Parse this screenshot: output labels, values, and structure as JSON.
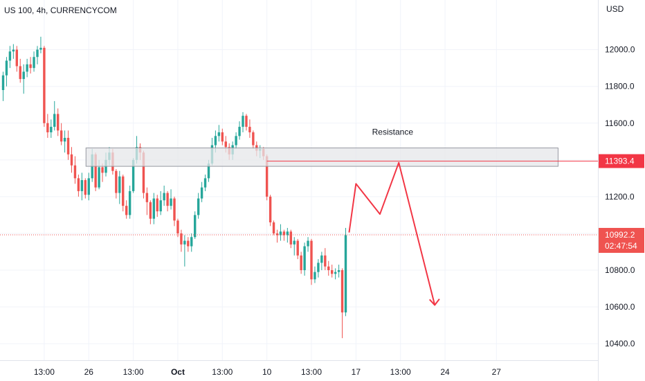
{
  "header": {
    "title": "US 100, 4h, CURRENCYCOM"
  },
  "colors": {
    "up": "#26a69a",
    "down": "#ef5350",
    "projection": "#f23645",
    "grid": "#f0f3fa",
    "zone_fill": "#e6e7ea",
    "zone_border": "#9598a1"
  },
  "chart_data": {
    "type": "candlestick",
    "title": "US 100, 4h, CURRENCYCOM",
    "ylabel": "USD",
    "ylim": [
      10310,
      12270
    ],
    "grid": true,
    "x_ticks": [
      {
        "label": "13:00",
        "bar": 12
      },
      {
        "label": "26",
        "bar": 25
      },
      {
        "label": "13:00",
        "bar": 38
      },
      {
        "label": "Oct",
        "bar": 51,
        "bold": true
      },
      {
        "label": "13:00",
        "bar": 64
      },
      {
        "label": "10",
        "bar": 77
      },
      {
        "label": "13:00",
        "bar": 90
      },
      {
        "label": "17",
        "bar": 103
      },
      {
        "label": "13:00",
        "bar": 116
      },
      {
        "label": "24",
        "bar": 129
      },
      {
        "label": "27",
        "bar": 144
      }
    ],
    "y_ticks": [
      "12000.0",
      "11800.0",
      "11600.0",
      "11400.0",
      "11200.0",
      "11000.0",
      "10800.0",
      "10600.0",
      "10400.0"
    ],
    "candles": [
      [
        11780,
        11880,
        11720,
        11860
      ],
      [
        11860,
        11960,
        11800,
        11940
      ],
      [
        11940,
        12020,
        11900,
        11990
      ],
      [
        11990,
        12030,
        11950,
        12000
      ],
      [
        12000,
        12020,
        11880,
        11910
      ],
      [
        11910,
        11950,
        11820,
        11840
      ],
      [
        11840,
        11920,
        11760,
        11880
      ],
      [
        11880,
        11950,
        11850,
        11920
      ],
      [
        11920,
        11960,
        11870,
        11900
      ],
      [
        11900,
        11990,
        11880,
        11960
      ],
      [
        11960,
        12020,
        11920,
        12000
      ],
      [
        12000,
        12070,
        11980,
        12010
      ],
      [
        12010,
        12020,
        11580,
        11600
      ],
      [
        11600,
        11650,
        11520,
        11550
      ],
      [
        11550,
        11620,
        11520,
        11580
      ],
      [
        11580,
        11720,
        11560,
        11650
      ],
      [
        11650,
        11680,
        11530,
        11560
      ],
      [
        11560,
        11600,
        11480,
        11500
      ],
      [
        11500,
        11560,
        11440,
        11520
      ],
      [
        11520,
        11560,
        11400,
        11430
      ],
      [
        11430,
        11470,
        11330,
        11370
      ],
      [
        11370,
        11420,
        11270,
        11300
      ],
      [
        11300,
        11320,
        11200,
        11230
      ],
      [
        11230,
        11330,
        11180,
        11290
      ],
      [
        11290,
        11300,
        11190,
        11210
      ],
      [
        11210,
        11330,
        11180,
        11300
      ],
      [
        11300,
        11460,
        11280,
        11430
      ],
      [
        11430,
        11440,
        11230,
        11250
      ],
      [
        11250,
        11400,
        11240,
        11360
      ],
      [
        11360,
        11380,
        11280,
        11330
      ],
      [
        11330,
        11440,
        11310,
        11400
      ],
      [
        11400,
        11470,
        11370,
        11440
      ],
      [
        11440,
        11460,
        11320,
        11340
      ],
      [
        11340,
        11350,
        11190,
        11220
      ],
      [
        11220,
        11340,
        11160,
        11310
      ],
      [
        11310,
        11320,
        11120,
        11150
      ],
      [
        11150,
        11180,
        11080,
        11100
      ],
      [
        11100,
        11260,
        11080,
        11230
      ],
      [
        11230,
        11410,
        11220,
        11400
      ],
      [
        11400,
        11530,
        11380,
        11470
      ],
      [
        11470,
        11490,
        11400,
        11440
      ],
      [
        11440,
        11450,
        11190,
        11220
      ],
      [
        11220,
        11250,
        11100,
        11170
      ],
      [
        11170,
        11180,
        11050,
        11080
      ],
      [
        11080,
        11220,
        11050,
        11190
      ],
      [
        11190,
        11210,
        11090,
        11120
      ],
      [
        11120,
        11230,
        11100,
        11180
      ],
      [
        11180,
        11260,
        11150,
        11220
      ],
      [
        11220,
        11230,
        11120,
        11150
      ],
      [
        11150,
        11240,
        11130,
        11190
      ],
      [
        11190,
        11200,
        11040,
        11070
      ],
      [
        11070,
        11080,
        10980,
        11000
      ],
      [
        11000,
        11020,
        10900,
        10940
      ],
      [
        10940,
        10990,
        10820,
        10960
      ],
      [
        10960,
        10980,
        10900,
        10930
      ],
      [
        10930,
        11000,
        10900,
        10980
      ],
      [
        10980,
        11120,
        10970,
        11100
      ],
      [
        11100,
        11220,
        11080,
        11190
      ],
      [
        11190,
        11280,
        11170,
        11250
      ],
      [
        11250,
        11320,
        11230,
        11300
      ],
      [
        11300,
        11400,
        11280,
        11380
      ],
      [
        11380,
        11520,
        11370,
        11480
      ],
      [
        11480,
        11560,
        11440,
        11530
      ],
      [
        11530,
        11590,
        11500,
        11550
      ],
      [
        11550,
        11570,
        11480,
        11500
      ],
      [
        11500,
        11530,
        11440,
        11470
      ],
      [
        11470,
        11490,
        11400,
        11430
      ],
      [
        11430,
        11500,
        11400,
        11480
      ],
      [
        11480,
        11550,
        11460,
        11530
      ],
      [
        11530,
        11610,
        11510,
        11580
      ],
      [
        11580,
        11660,
        11550,
        11640
      ],
      [
        11640,
        11650,
        11560,
        11580
      ],
      [
        11580,
        11620,
        11520,
        11550
      ],
      [
        11550,
        11560,
        11460,
        11480
      ],
      [
        11480,
        11500,
        11420,
        11450
      ],
      [
        11450,
        11480,
        11410,
        11460
      ],
      [
        11460,
        11470,
        11400,
        11420
      ],
      [
        11420,
        11430,
        11180,
        11200
      ],
      [
        11200,
        11210,
        11040,
        11060
      ],
      [
        11060,
        11070,
        10990,
        11000
      ],
      [
        11000,
        11020,
        10950,
        10990
      ],
      [
        10990,
        11050,
        10960,
        11010
      ],
      [
        11010,
        11020,
        10960,
        10990
      ],
      [
        10990,
        11030,
        10950,
        11010
      ],
      [
        11010,
        11020,
        10920,
        10940
      ],
      [
        10940,
        10980,
        10880,
        10960
      ],
      [
        10960,
        10970,
        10860,
        10880
      ],
      [
        10880,
        10900,
        10780,
        10800
      ],
      [
        10800,
        10950,
        10770,
        10930
      ],
      [
        10930,
        10980,
        10900,
        10960
      ],
      [
        10960,
        10970,
        10720,
        10750
      ],
      [
        10750,
        10820,
        10730,
        10790
      ],
      [
        10790,
        10860,
        10760,
        10840
      ],
      [
        10840,
        10900,
        10800,
        10880
      ],
      [
        10880,
        10920,
        10800,
        10820
      ],
      [
        10820,
        10850,
        10770,
        10800
      ],
      [
        10800,
        10830,
        10760,
        10780
      ],
      [
        10780,
        10810,
        10750,
        10790
      ],
      [
        10790,
        10830,
        10760,
        10800
      ],
      [
        10800,
        10810,
        10430,
        10570
      ],
      [
        10570,
        11030,
        10550,
        10990
      ]
    ],
    "resistance_zone": {
      "label": "Resistance",
      "top": 11465,
      "bottom": 11365,
      "bar_start": 25,
      "bar_end": 162
    },
    "level_line": {
      "value": 11393.4
    },
    "last_price": {
      "value": 10992.2,
      "countdown": "02:47:54"
    },
    "price_labels": {
      "level": "11393.4",
      "last": "10992.2"
    },
    "projection": [
      {
        "bar": 101,
        "price": 11005
      },
      {
        "bar": 103,
        "price": 11270
      },
      {
        "bar": 110,
        "price": 11105
      },
      {
        "bar": 115.5,
        "price": 11385
      },
      {
        "bar": 126,
        "price": 10610
      }
    ]
  }
}
